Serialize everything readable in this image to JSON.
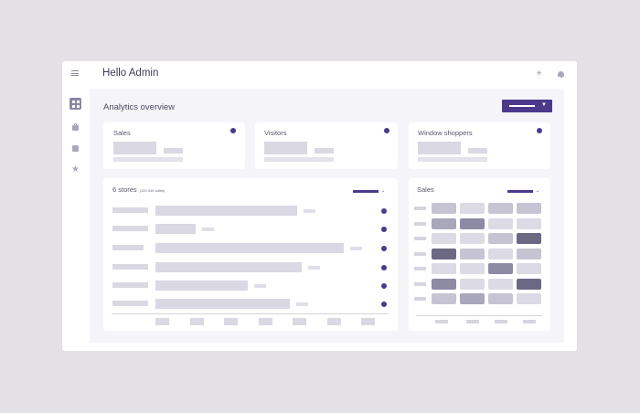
{
  "header": {
    "title": "Hello Admin",
    "menu_icon": "hamburger-menu-icon",
    "theme_icon": "sun-icon",
    "notify_icon": "bell-icon"
  },
  "sidebar": {
    "items": [
      {
        "icon": "dashboard-grid-icon",
        "active": true
      },
      {
        "icon": "shopping-bag-icon",
        "active": false
      },
      {
        "icon": "chart-icon",
        "active": false
      },
      {
        "icon": "star-icon",
        "active": false
      }
    ]
  },
  "main": {
    "title": "Analytics overview"
  },
  "stat_cards": [
    {
      "label": "Sales"
    },
    {
      "label": "Visitors"
    },
    {
      "label": "Window shoppers"
    }
  ],
  "stores_card": {
    "title": "6 stores",
    "subtitle": "(120,045 sales)",
    "bar_fractions": [
      0.6,
      0.17,
      0.8,
      0.62,
      0.39,
      0.57
    ]
  },
  "sales_card": {
    "title": "Sales",
    "heatmap_levels": [
      [
        2,
        1,
        2,
        2
      ],
      [
        3,
        4,
        1,
        1
      ],
      [
        1,
        1,
        2,
        5
      ],
      [
        5,
        2,
        1,
        2
      ],
      [
        1,
        1,
        4,
        1
      ],
      [
        4,
        1,
        1,
        5
      ],
      [
        2,
        3,
        2,
        1
      ]
    ]
  },
  "colors": {
    "accent": "#4b3a8c",
    "placeholder": "#dad8e2",
    "background": "#e3e1e5",
    "panel": "#f5f5f9"
  }
}
